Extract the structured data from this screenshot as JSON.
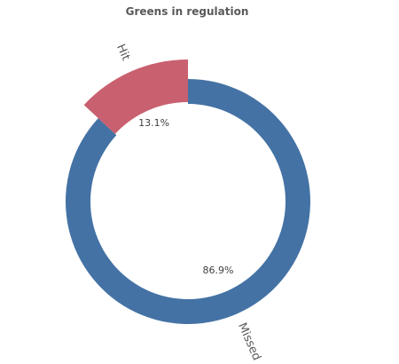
{
  "chart_data": {
    "type": "pie",
    "variant": "donut",
    "title": "Greens in regulation",
    "slices": [
      {
        "label": "Missed",
        "value": 86.9,
        "value_label": "86.9%",
        "color": "#4472a4"
      },
      {
        "label": "Hit",
        "value": 13.1,
        "value_label": "13.1%",
        "color": "#c9606f",
        "exploded": true
      }
    ],
    "legend": "none"
  }
}
